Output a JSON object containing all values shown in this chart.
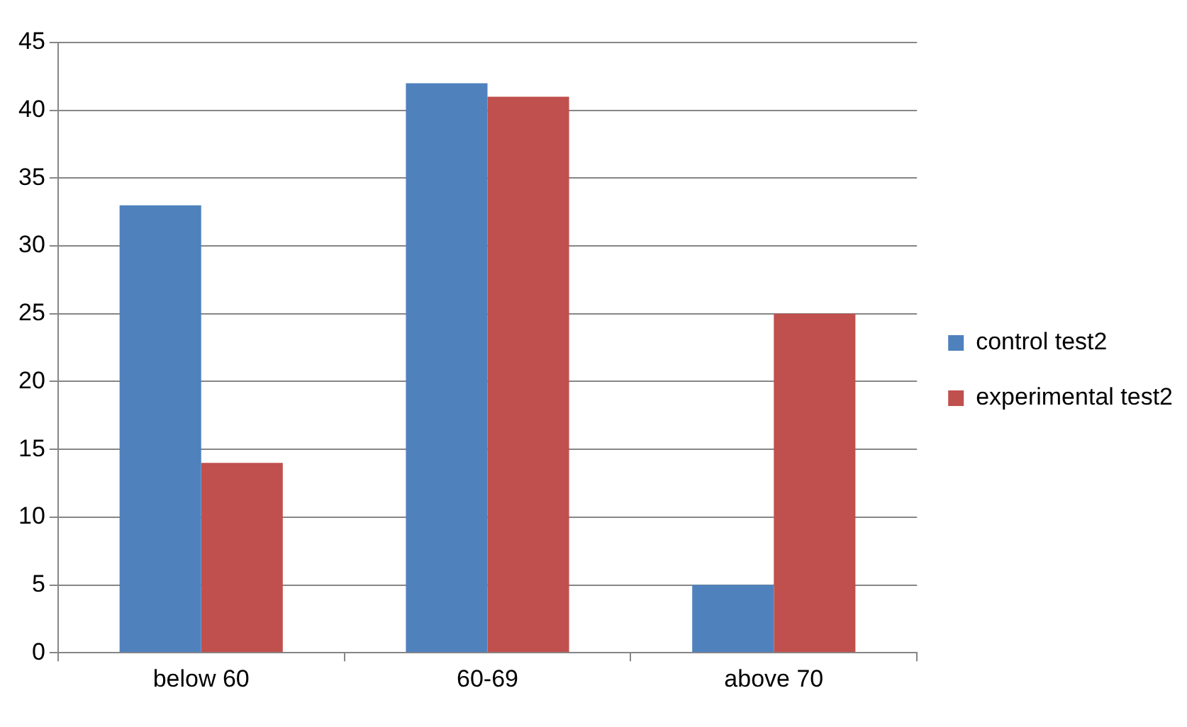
{
  "chart_data": {
    "type": "bar",
    "categories": [
      "below 60",
      "60-69",
      "above 70"
    ],
    "series": [
      {
        "name": "control test2",
        "color": "#4f81bd",
        "values": [
          33,
          42,
          5
        ]
      },
      {
        "name": "experimental test2",
        "color": "#c0504d",
        "values": [
          14,
          41,
          25
        ]
      }
    ],
    "ylim": [
      0,
      45
    ],
    "yticks": [
      0,
      5,
      10,
      15,
      20,
      25,
      30,
      35,
      40,
      45
    ],
    "grid": "y",
    "legend": "right"
  }
}
